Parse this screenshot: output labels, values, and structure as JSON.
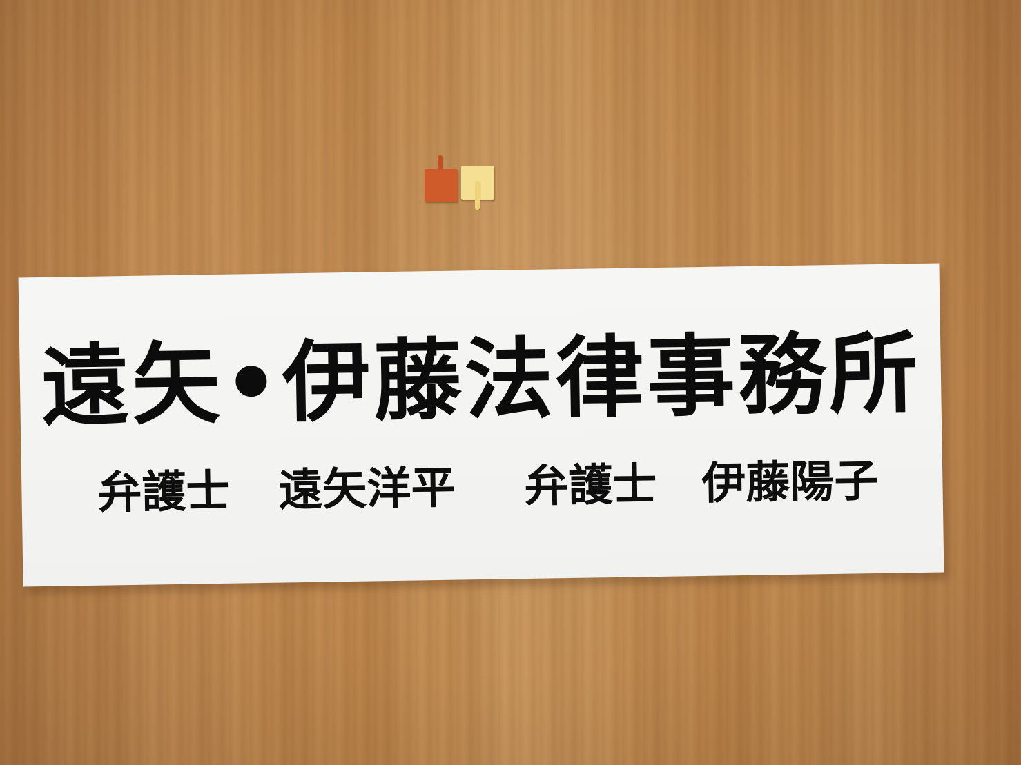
{
  "sign": {
    "title": "遠矢•伊藤法律事務所",
    "attorneys": [
      {
        "role": "弁護士",
        "name": "遠矢洋平"
      },
      {
        "role": "弁護士",
        "name": "伊藤陽子"
      }
    ]
  },
  "colors": {
    "wood": "#bb854c",
    "sign_background": "#f3f3f1",
    "text": "#0c0c0c",
    "hook_red": "#cf5a2a",
    "hook_yellow": "#f4df92"
  }
}
